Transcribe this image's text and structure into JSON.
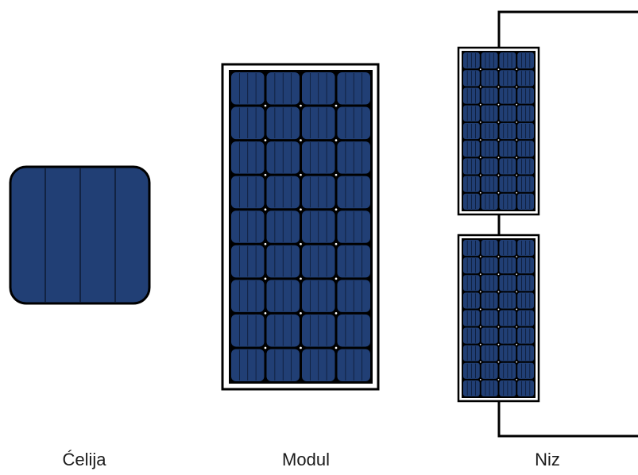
{
  "labels": {
    "cell": "Ćelija",
    "module": "Modul",
    "array": "Niz"
  },
  "colors": {
    "cell_fill": "#213f75",
    "frame": "#000000",
    "background": "#ffffff",
    "cell_lines": "#0d1a33"
  }
}
